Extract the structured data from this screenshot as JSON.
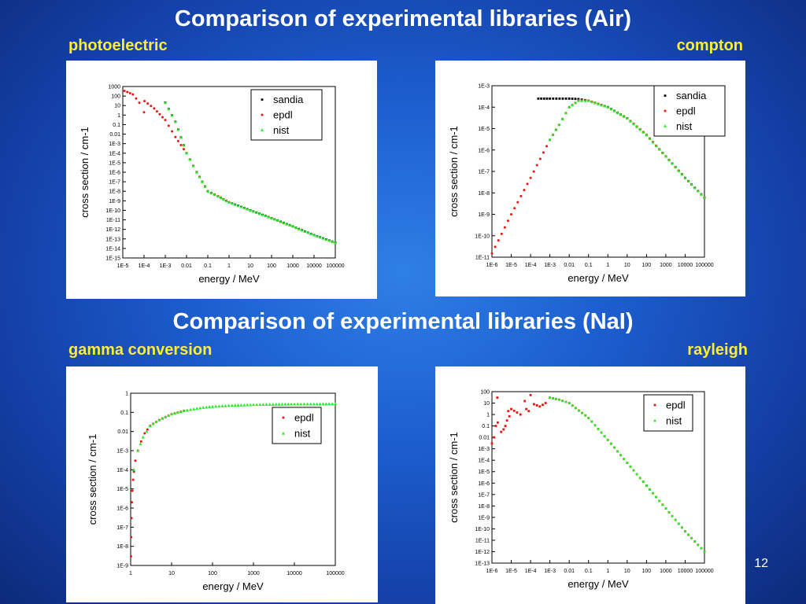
{
  "slide": {
    "title_air": "Comparison of experimental libraries (Air)",
    "title_nai": "Comparison of experimental libraries (NaI)",
    "label_photoelectric": "photoelectric",
    "label_compton": "compton",
    "label_gamma": "gamma conversion",
    "label_rayleigh": "rayleigh",
    "page_number": "12"
  },
  "colors": {
    "sandia": "#000000",
    "epdl": "#ee1111",
    "nist": "#22ee22",
    "label": "#ffee33"
  },
  "chart_data": [
    {
      "id": "photoelectric",
      "type": "scatter",
      "xlabel": "energy / MeV",
      "ylabel": "cross section / cm-1",
      "xscale": "log",
      "yscale": "log",
      "xlim": [
        1e-05,
        100000
      ],
      "ylim": [
        1e-15,
        1000
      ],
      "xticks": [
        "1E-5",
        "1E-4",
        "1E-3",
        "0.01",
        "0.1",
        "1",
        "10",
        "100",
        "1000",
        "10000",
        "100000"
      ],
      "yticks": [
        "1E-15",
        "1E-14",
        "1E-13",
        "1E-12",
        "1E-11",
        "1E-10",
        "1E-9",
        "1E-8",
        "1E-7",
        "1E-6",
        "1E-5",
        "1E-4",
        "1E-3",
        "0.01",
        "0.1",
        "1",
        "10",
        "100",
        "1000"
      ],
      "legend": "top-right",
      "series": [
        {
          "name": "sandia",
          "marker": "square",
          "points": [
            [
              0.001,
              20
            ],
            [
              0.003,
              0.2
            ],
            [
              0.01,
              0.0001
            ],
            [
              0.03,
              1e-06
            ],
            [
              0.1,
              1e-08
            ],
            [
              0.3,
              3e-09
            ],
            [
              1,
              7e-10
            ],
            [
              10,
              1e-10
            ],
            [
              100,
              1.5e-11
            ],
            [
              1000,
              2e-12
            ],
            [
              10000,
              2.5e-13
            ],
            [
              100000,
              4e-14
            ]
          ]
        },
        {
          "name": "epdl",
          "marker": "circle",
          "points": [
            [
              1.2e-05,
              350
            ],
            [
              3e-05,
              150
            ],
            [
              6e-05,
              20
            ],
            [
              0.0001,
              2
            ],
            [
              0.000105,
              30
            ],
            [
              0.0003,
              5
            ],
            [
              0.001,
              0.3
            ],
            [
              0.003,
              0.005
            ],
            [
              0.01,
              0.0001
            ],
            [
              0.03,
              1e-06
            ],
            [
              0.1,
              1e-08
            ],
            [
              0.3,
              3e-09
            ],
            [
              1,
              7e-10
            ]
          ]
        },
        {
          "name": "nist",
          "marker": "triangle",
          "points": [
            [
              0.001,
              20
            ],
            [
              0.003,
              0.2
            ],
            [
              0.01,
              0.0001
            ],
            [
              0.03,
              1e-06
            ],
            [
              0.1,
              1e-08
            ],
            [
              0.3,
              3e-09
            ],
            [
              1,
              7e-10
            ],
            [
              10,
              1e-10
            ],
            [
              100,
              1.5e-11
            ],
            [
              1000,
              2e-12
            ],
            [
              10000,
              2.5e-13
            ],
            [
              100000,
              4e-14
            ]
          ]
        }
      ]
    },
    {
      "id": "compton",
      "type": "scatter",
      "xlabel": "energy / MeV",
      "ylabel": "cross section / cm-1",
      "xscale": "log",
      "yscale": "log",
      "xlim": [
        1e-06,
        100000
      ],
      "ylim": [
        1e-11,
        0.001
      ],
      "xticks": [
        "1E-6",
        "1E-5",
        "1E-4",
        "1E-3",
        "0.01",
        "0.1",
        "1",
        "10",
        "100",
        "1000",
        "10000",
        "100000"
      ],
      "yticks": [
        "1E-11",
        "1E-10",
        "1E-9",
        "1E-8",
        "1E-7",
        "1E-6",
        "1E-5",
        "1E-4",
        "1E-3"
      ],
      "legend": "top-right",
      "series": [
        {
          "name": "sandia",
          "marker": "square",
          "points": [
            [
              0.00025,
              0.00025
            ],
            [
              0.001,
              0.00025
            ],
            [
              0.01,
              0.00025
            ],
            [
              0.03,
              0.00024
            ],
            [
              0.1,
              0.0002
            ],
            [
              1,
              0.0001
            ],
            [
              10,
              3e-05
            ],
            [
              100,
              5e-06
            ],
            [
              1000,
              5e-07
            ],
            [
              10000,
              5e-08
            ],
            [
              100000,
              6e-09
            ]
          ]
        },
        {
          "name": "epdl",
          "marker": "circle",
          "points": [
            [
              1e-06,
              1.5e-11
            ],
            [
              1e-05,
              1e-09
            ],
            [
              0.0001,
              5e-08
            ],
            [
              0.001,
              3e-06
            ],
            [
              0.003,
              1.5e-05
            ],
            [
              0.01,
              0.0001
            ],
            [
              0.03,
              0.0002
            ],
            [
              0.1,
              0.0002
            ],
            [
              1,
              0.0001
            ],
            [
              10,
              3e-05
            ],
            [
              100,
              5e-06
            ],
            [
              1000,
              5e-07
            ],
            [
              10000,
              5e-08
            ],
            [
              100000,
              6e-09
            ]
          ]
        },
        {
          "name": "nist",
          "marker": "triangle",
          "points": [
            [
              0.001,
              3e-06
            ],
            [
              0.003,
              1.5e-05
            ],
            [
              0.01,
              0.0001
            ],
            [
              0.03,
              0.0002
            ],
            [
              0.1,
              0.0002
            ],
            [
              1,
              0.0001
            ],
            [
              10,
              3e-05
            ],
            [
              100,
              5e-06
            ],
            [
              1000,
              5e-07
            ],
            [
              10000,
              5e-08
            ],
            [
              100000,
              6e-09
            ]
          ]
        }
      ]
    },
    {
      "id": "gamma",
      "type": "scatter",
      "xlabel": "energy / MeV",
      "ylabel": "cross section / cm-1",
      "xscale": "log",
      "yscale": "log",
      "xlim": [
        1,
        100000
      ],
      "ylim": [
        1e-09,
        1
      ],
      "xticks": [
        "1",
        "10",
        "100",
        "1000",
        "10000",
        "100000"
      ],
      "yticks": [
        "1E-9",
        "1E-8",
        "1E-7",
        "1E-6",
        "1E-5",
        "1E-4",
        "1E-3",
        "0.01",
        "0.1",
        "1"
      ],
      "legend": "top-right",
      "series": [
        {
          "name": "epdl",
          "marker": "circle",
          "points": [
            [
              1.02,
              3e-09
            ],
            [
              1.03,
              3e-08
            ],
            [
              1.05,
              3e-07
            ],
            [
              1.07,
              2e-06
            ],
            [
              1.1,
              8e-06
            ],
            [
              1.15,
              3e-05
            ],
            [
              1.2,
              8e-05
            ],
            [
              1.3,
              0.0003
            ],
            [
              1.5,
              0.001
            ],
            [
              1.8,
              0.003
            ],
            [
              2.2,
              0.008
            ],
            [
              3,
              0.02
            ],
            [
              5,
              0.04
            ],
            [
              10,
              0.08
            ],
            [
              20,
              0.12
            ]
          ]
        },
        {
          "name": "nist",
          "marker": "triangle",
          "points": [
            [
              1.2,
              0.0001
            ],
            [
              1.5,
              0.001
            ],
            [
              2,
              0.005
            ],
            [
              3,
              0.02
            ],
            [
              5,
              0.04
            ],
            [
              10,
              0.08
            ],
            [
              20,
              0.12
            ],
            [
              50,
              0.17
            ],
            [
              100,
              0.2
            ],
            [
              300,
              0.23
            ],
            [
              1000,
              0.25
            ],
            [
              3000,
              0.26
            ],
            [
              10000,
              0.27
            ],
            [
              30000,
              0.27
            ],
            [
              100000,
              0.28
            ]
          ]
        }
      ]
    },
    {
      "id": "rayleigh",
      "type": "scatter",
      "xlabel": "energy / MeV",
      "ylabel": "cross section / cm-1",
      "xscale": "log",
      "yscale": "log",
      "xlim": [
        1e-06,
        100000
      ],
      "ylim": [
        1e-13,
        100
      ],
      "xticks": [
        "1E-6",
        "1E-5",
        "1E-4",
        "1E-3",
        "0.01",
        "0.1",
        "1",
        "10",
        "100",
        "1000",
        "10000",
        "100000"
      ],
      "yticks": [
        "1E-13",
        "1E-12",
        "1E-11",
        "1E-10",
        "1E-9",
        "1E-8",
        "1E-7",
        "1E-6",
        "1E-5",
        "1E-4",
        "1E-3",
        "0.01",
        "0.1",
        "1",
        "10",
        "100"
      ],
      "legend": "top-right",
      "series": [
        {
          "name": "epdl",
          "marker": "square",
          "points": [
            [
              1e-06,
              0.003
            ],
            [
              1.3e-06,
              0.01
            ],
            [
              1.6e-06,
              0.1
            ],
            [
              1.9e-06,
              30
            ],
            [
              2e-06,
              0.2
            ],
            [
              3e-06,
              0.03
            ],
            [
              4e-06,
              0.05
            ],
            [
              5e-06,
              0.1
            ],
            [
              6e-06,
              0.3
            ],
            [
              7e-06,
              2
            ],
            [
              8e-06,
              0.7
            ],
            [
              1e-05,
              3
            ],
            [
              2e-05,
              1.5
            ],
            [
              3e-05,
              1
            ],
            [
              5e-05,
              15
            ],
            [
              6e-05,
              3
            ],
            [
              8e-05,
              2
            ],
            [
              0.0001,
              50
            ],
            [
              0.00015,
              8
            ],
            [
              0.0003,
              5
            ],
            [
              0.0006,
              10
            ],
            [
              0.001,
              30
            ],
            [
              0.003,
              20
            ],
            [
              0.01,
              10
            ],
            [
              0.1,
              0.5
            ],
            [
              1,
              0.006
            ],
            [
              10,
              6e-05
            ],
            [
              100,
              6e-07
            ],
            [
              1000,
              6e-09
            ],
            [
              10000,
              6e-11
            ],
            [
              100000,
              1e-12
            ]
          ]
        },
        {
          "name": "nist",
          "marker": "circle",
          "points": [
            [
              0.001,
              30
            ],
            [
              0.003,
              20
            ],
            [
              0.01,
              10
            ],
            [
              0.1,
              0.5
            ],
            [
              1,
              0.006
            ],
            [
              10,
              6e-05
            ],
            [
              100,
              6e-07
            ],
            [
              1000,
              6e-09
            ],
            [
              10000,
              6e-11
            ],
            [
              100000,
              1e-12
            ]
          ]
        }
      ]
    }
  ]
}
